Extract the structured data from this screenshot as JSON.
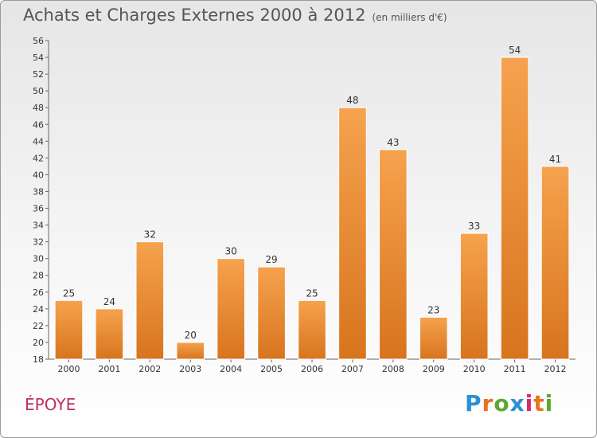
{
  "header": {
    "title": "Achats et Charges Externes 2000 à 2012",
    "unit": "(en milliers d'€)"
  },
  "footer": {
    "commune": "ÉPOYE",
    "logo_text": "Proxiti",
    "logo_colors": [
      "#2a8fd6",
      "#e8731f",
      "#5aa832",
      "#2a8fd6",
      "#d62a6b",
      "#e8731f",
      "#5aa832"
    ]
  },
  "colors": {
    "bar_light": "#f6a24e",
    "bar_dark": "#d8741e",
    "bar_edge": "#ffffff"
  },
  "chart_data": {
    "type": "bar",
    "title": "Achats et Charges Externes 2000 à 2012",
    "subtitle": "(en milliers d'€)",
    "categories": [
      "2000",
      "2001",
      "2002",
      "2003",
      "2004",
      "2005",
      "2006",
      "2007",
      "2008",
      "2009",
      "2010",
      "2011",
      "2012"
    ],
    "values": [
      25,
      24,
      32,
      20,
      30,
      29,
      25,
      48,
      43,
      23,
      33,
      54,
      41
    ],
    "ylim": [
      18,
      56
    ],
    "yticks": [
      18,
      20,
      22,
      24,
      26,
      28,
      30,
      32,
      34,
      36,
      38,
      40,
      42,
      44,
      46,
      48,
      50,
      52,
      54,
      56
    ],
    "grid": false,
    "show_value_labels": true
  }
}
